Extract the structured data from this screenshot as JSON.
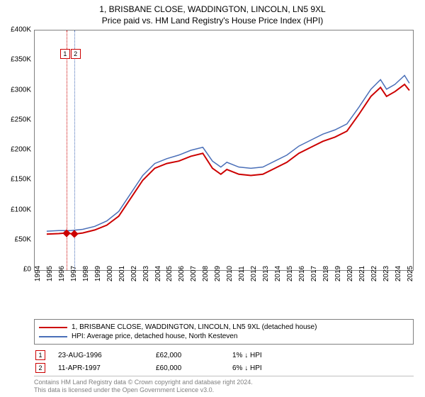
{
  "title": {
    "line1": "1, BRISBANE CLOSE, WADDINGTON, LINCOLN, LN5 9XL",
    "line2": "Price paid vs. HM Land Registry's House Price Index (HPI)"
  },
  "chart": {
    "type": "line",
    "background_color": "#ffffff",
    "border_color": "#808080",
    "x": {
      "min": 1994,
      "max": 2025.5,
      "ticks": [
        1994,
        1995,
        1996,
        1997,
        1998,
        1999,
        2000,
        2001,
        2002,
        2003,
        2004,
        2005,
        2006,
        2007,
        2008,
        2009,
        2010,
        2011,
        2012,
        2013,
        2014,
        2015,
        2016,
        2017,
        2018,
        2019,
        2020,
        2021,
        2022,
        2023,
        2024,
        2025
      ],
      "tick_fontsize": 10
    },
    "y": {
      "min": 0,
      "max": 400000,
      "ticks": [
        0,
        50000,
        100000,
        150000,
        200000,
        250000,
        300000,
        350000,
        400000
      ],
      "tick_labels": [
        "£0",
        "£50K",
        "£100K",
        "£150K",
        "£200K",
        "£250K",
        "£300K",
        "£350K",
        "£400K"
      ],
      "tick_fontsize": 10
    },
    "markers": [
      {
        "label": "1",
        "x": 1996.65,
        "y": 62000,
        "line_color": "#cc0000"
      },
      {
        "label": "2",
        "x": 1997.28,
        "y": 60000,
        "line_color": "#4a6fb8"
      }
    ],
    "series": [
      {
        "name": "price_paid",
        "label": "1, BRISBANE CLOSE, WADDINGTON, LINCOLN, LN5 9XL (detached house)",
        "color": "#cc0000",
        "line_width": 2,
        "data": [
          [
            1995.0,
            60000
          ],
          [
            1996.0,
            61000
          ],
          [
            1996.65,
            62000
          ],
          [
            1997.28,
            60000
          ],
          [
            1998.0,
            62000
          ],
          [
            1999.0,
            67000
          ],
          [
            2000.0,
            75000
          ],
          [
            2001.0,
            90000
          ],
          [
            2002.0,
            120000
          ],
          [
            2003.0,
            150000
          ],
          [
            2004.0,
            170000
          ],
          [
            2005.0,
            178000
          ],
          [
            2006.0,
            182000
          ],
          [
            2007.0,
            190000
          ],
          [
            2008.0,
            195000
          ],
          [
            2008.8,
            170000
          ],
          [
            2009.5,
            160000
          ],
          [
            2010.0,
            168000
          ],
          [
            2011.0,
            160000
          ],
          [
            2012.0,
            158000
          ],
          [
            2013.0,
            160000
          ],
          [
            2014.0,
            170000
          ],
          [
            2015.0,
            180000
          ],
          [
            2016.0,
            195000
          ],
          [
            2017.0,
            205000
          ],
          [
            2018.0,
            215000
          ],
          [
            2019.0,
            222000
          ],
          [
            2020.0,
            232000
          ],
          [
            2021.0,
            260000
          ],
          [
            2022.0,
            290000
          ],
          [
            2022.8,
            305000
          ],
          [
            2023.3,
            290000
          ],
          [
            2024.0,
            298000
          ],
          [
            2024.8,
            310000
          ],
          [
            2025.2,
            300000
          ]
        ]
      },
      {
        "name": "hpi",
        "label": "HPI: Average price, detached house, North Kesteven",
        "color": "#4a6fb8",
        "line_width": 1.5,
        "data": [
          [
            1995.0,
            65000
          ],
          [
            1996.0,
            66000
          ],
          [
            1997.0,
            66000
          ],
          [
            1998.0,
            68000
          ],
          [
            1999.0,
            73000
          ],
          [
            2000.0,
            82000
          ],
          [
            2001.0,
            98000
          ],
          [
            2002.0,
            128000
          ],
          [
            2003.0,
            158000
          ],
          [
            2004.0,
            178000
          ],
          [
            2005.0,
            186000
          ],
          [
            2006.0,
            192000
          ],
          [
            2007.0,
            200000
          ],
          [
            2008.0,
            205000
          ],
          [
            2008.8,
            182000
          ],
          [
            2009.5,
            172000
          ],
          [
            2010.0,
            180000
          ],
          [
            2011.0,
            172000
          ],
          [
            2012.0,
            170000
          ],
          [
            2013.0,
            172000
          ],
          [
            2014.0,
            182000
          ],
          [
            2015.0,
            192000
          ],
          [
            2016.0,
            207000
          ],
          [
            2017.0,
            217000
          ],
          [
            2018.0,
            227000
          ],
          [
            2019.0,
            234000
          ],
          [
            2020.0,
            244000
          ],
          [
            2021.0,
            272000
          ],
          [
            2022.0,
            302000
          ],
          [
            2022.8,
            318000
          ],
          [
            2023.3,
            302000
          ],
          [
            2024.0,
            310000
          ],
          [
            2024.8,
            325000
          ],
          [
            2025.2,
            312000
          ]
        ]
      }
    ]
  },
  "legend": {
    "series": [
      {
        "color": "#cc0000",
        "text": "1, BRISBANE CLOSE, WADDINGTON, LINCOLN, LN5 9XL (detached house)"
      },
      {
        "color": "#4a6fb8",
        "text": "HPI: Average price, detached house, North Kesteven"
      }
    ],
    "transactions": [
      {
        "num": "1",
        "date": "23-AUG-1996",
        "price": "£62,000",
        "delta": "1% ↓ HPI"
      },
      {
        "num": "2",
        "date": "11-APR-1997",
        "price": "£60,000",
        "delta": "6% ↓ HPI"
      }
    ]
  },
  "footer": {
    "line1": "Contains HM Land Registry data © Crown copyright and database right 2024.",
    "line2": "This data is licensed under the Open Government Licence v3.0."
  },
  "colors": {
    "marker_box_border": "#cc0000",
    "text_muted": "#808080"
  }
}
